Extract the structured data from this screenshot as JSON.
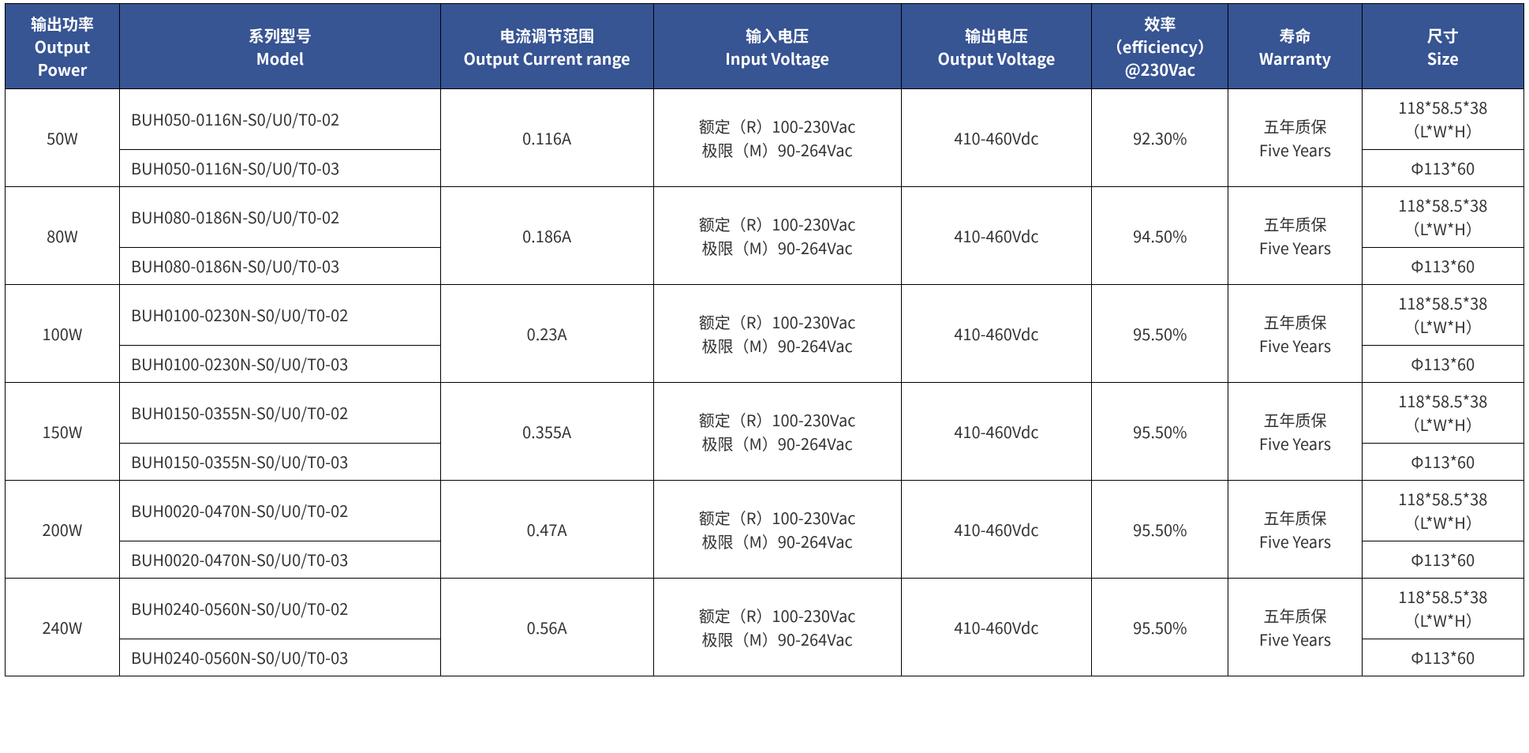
{
  "table": {
    "type": "table",
    "colors": {
      "header_bg": "#375493",
      "header_fg": "#ffffff",
      "body_bg": "#ffffff",
      "body_fg": "#333333",
      "border": "#000000"
    },
    "typography": {
      "header_fontsize_pt": 15,
      "body_fontsize_pt": 15,
      "font_family": "Microsoft YaHei / Noto Sans CJK"
    },
    "column_widths_pct": [
      7.2,
      20.2,
      13.4,
      15.6,
      12.0,
      8.6,
      8.4,
      10.2
    ],
    "columns": [
      {
        "key": "power",
        "zh": "输出功率",
        "en": "Output Power"
      },
      {
        "key": "model",
        "zh": "系列型号",
        "en": "Model"
      },
      {
        "key": "current",
        "zh": "电流调节范围",
        "en": "Output Current range"
      },
      {
        "key": "vin",
        "zh": "输入电压",
        "en": "Input Voltage"
      },
      {
        "key": "vout",
        "zh": "输出电压",
        "en": "Output Voltage"
      },
      {
        "key": "eff",
        "zh": "效率",
        "en": "（efficiency）@230Vac"
      },
      {
        "key": "warranty",
        "zh": "寿命",
        "en": "Warranty"
      },
      {
        "key": "size",
        "zh": "尺寸",
        "en": "Size"
      }
    ],
    "groups": [
      {
        "power": "50W",
        "models": [
          "BUH050-0116N-S0/U0/T0-02",
          "BUH050-0116N-S0/U0/T0-03"
        ],
        "current": "0.116A",
        "vin_l1": "额定（R）100-230Vac",
        "vin_l2": "极限（M）90-264Vac",
        "vout": "410-460Vdc",
        "eff": "92.30%",
        "warranty_l1": "五年质保",
        "warranty_l2": "Five Years",
        "size1_l1": "118*58.5*38",
        "size1_l2": "（L*W*H）",
        "size2": "Φ113*60"
      },
      {
        "power": "80W",
        "models": [
          "BUH080-0186N-S0/U0/T0-02",
          "BUH080-0186N-S0/U0/T0-03"
        ],
        "current": "0.186A",
        "vin_l1": "额定（R）100-230Vac",
        "vin_l2": "极限（M）90-264Vac",
        "vout": "410-460Vdc",
        "eff": "94.50%",
        "warranty_l1": "五年质保",
        "warranty_l2": "Five Years",
        "size1_l1": "118*58.5*38",
        "size1_l2": "（L*W*H）",
        "size2": "Φ113*60"
      },
      {
        "power": "100W",
        "models": [
          "BUH0100-0230N-S0/U0/T0-02",
          "BUH0100-0230N-S0/U0/T0-03"
        ],
        "current": "0.23A",
        "vin_l1": "额定（R）100-230Vac",
        "vin_l2": "极限（M）90-264Vac",
        "vout": "410-460Vdc",
        "eff": "95.50%",
        "warranty_l1": "五年质保",
        "warranty_l2": "Five Years",
        "size1_l1": "118*58.5*38",
        "size1_l2": "（L*W*H）",
        "size2": "Φ113*60"
      },
      {
        "power": "150W",
        "models": [
          "BUH0150-0355N-S0/U0/T0-02",
          "BUH0150-0355N-S0/U0/T0-03"
        ],
        "current": "0.355A",
        "vin_l1": "额定（R）100-230Vac",
        "vin_l2": "极限（M）90-264Vac",
        "vout": "410-460Vdc",
        "eff": "95.50%",
        "warranty_l1": "五年质保",
        "warranty_l2": "Five Years",
        "size1_l1": "118*58.5*38",
        "size1_l2": "（L*W*H）",
        "size2": "Φ113*60"
      },
      {
        "power": "200W",
        "models": [
          "BUH0020-0470N-S0/U0/T0-02",
          "BUH0020-0470N-S0/U0/T0-03"
        ],
        "current": "0.47A",
        "vin_l1": "额定（R）100-230Vac",
        "vin_l2": "极限（M）90-264Vac",
        "vout": "410-460Vdc",
        "eff": "95.50%",
        "warranty_l1": "五年质保",
        "warranty_l2": "Five Years",
        "size1_l1": "118*58.5*38",
        "size1_l2": "（L*W*H）",
        "size2": "Φ113*60"
      },
      {
        "power": "240W",
        "models": [
          "BUH0240-0560N-S0/U0/T0-02",
          "BUH0240-0560N-S0/U0/T0-03"
        ],
        "current": "0.56A",
        "vin_l1": "额定（R）100-230Vac",
        "vin_l2": "极限（M）90-264Vac",
        "vout": "410-460Vdc",
        "eff": "95.50%",
        "warranty_l1": "五年质保",
        "warranty_l2": "Five Years",
        "size1_l1": "118*58.5*38",
        "size1_l2": "（L*W*H）",
        "size2": "Φ113*60"
      }
    ]
  }
}
